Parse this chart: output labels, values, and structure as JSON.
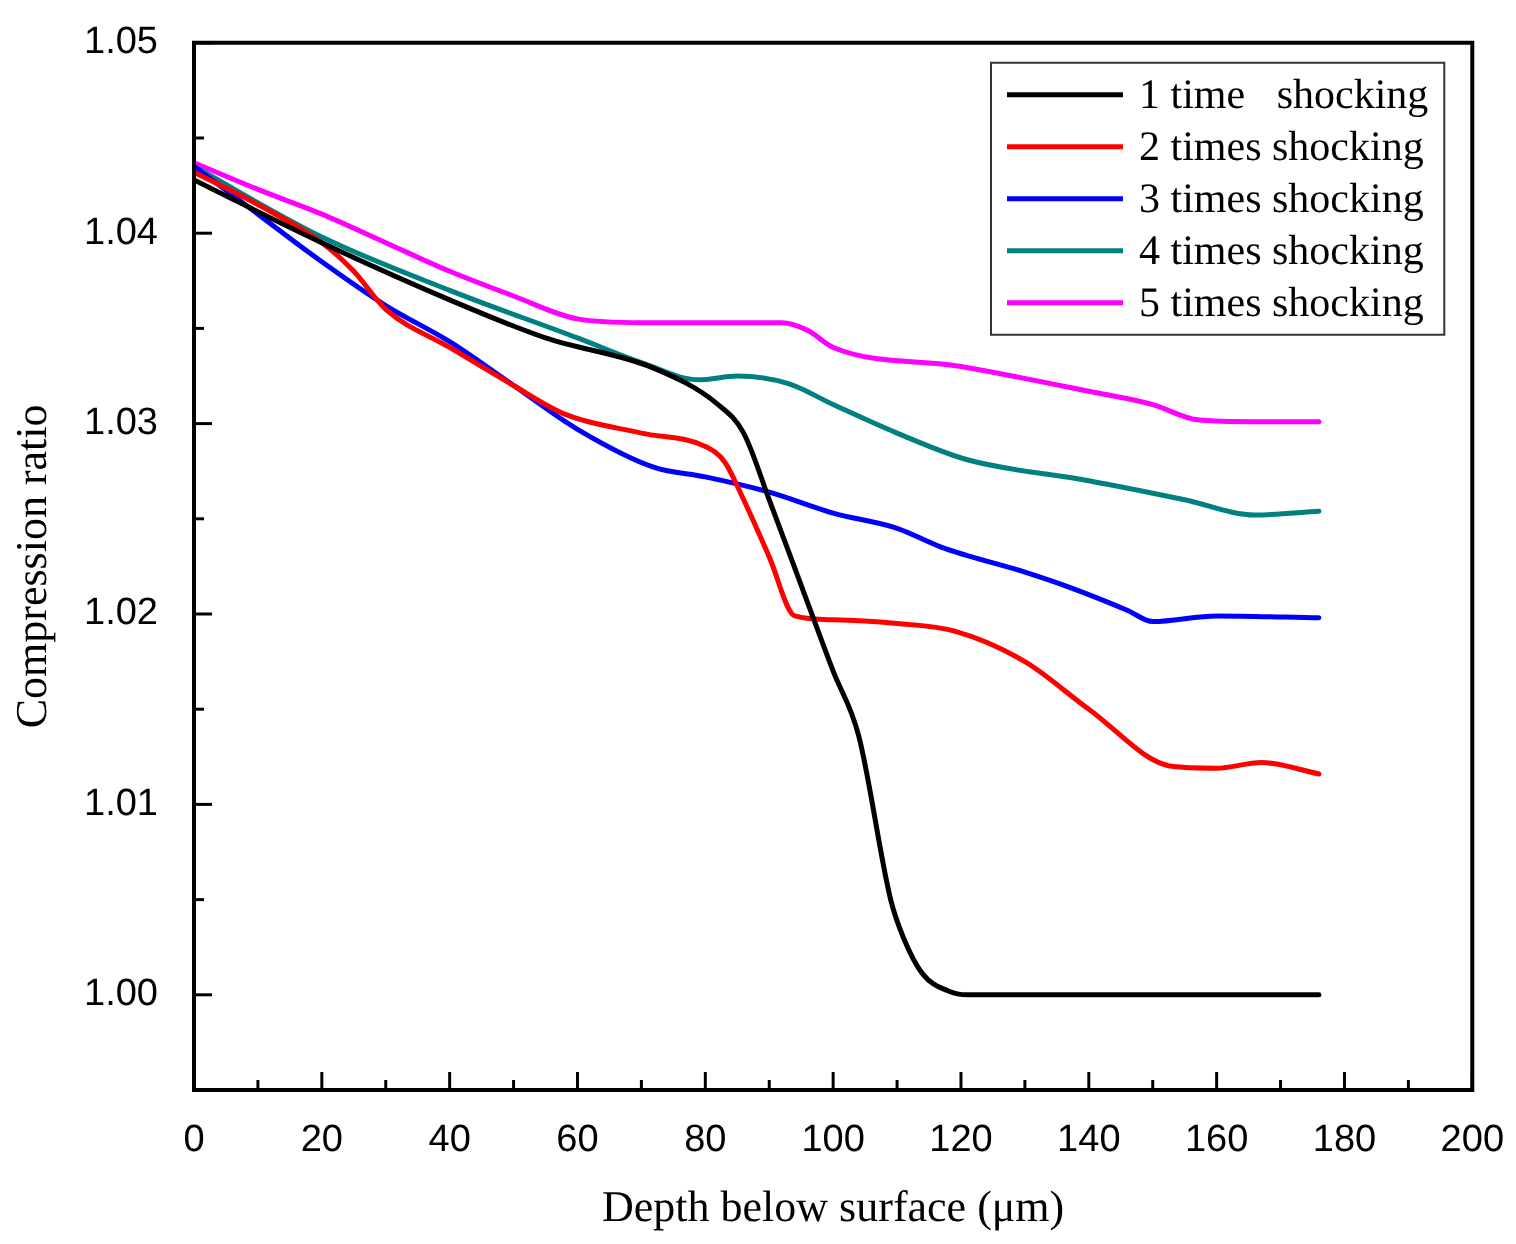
{
  "chart_data": {
    "type": "line",
    "xlabel": "Depth below surface (μm)",
    "ylabel": "Compression ratio",
    "xlim": [
      0,
      200
    ],
    "ylim": [
      0.995,
      1.05
    ],
    "xticks": [
      0,
      {
        "value": 10,
        "label": null
      },
      20,
      {
        "value": 30,
        "label": null
      },
      40,
      {
        "value": 50,
        "label": null
      },
      60,
      {
        "value": 70,
        "label": null
      },
      80,
      {
        "value": 90,
        "label": null
      },
      100,
      {
        "value": 110,
        "label": null
      },
      120,
      {
        "value": 130,
        "label": null
      },
      140,
      {
        "value": 150,
        "label": null
      },
      160,
      {
        "value": 170,
        "label": null
      },
      180,
      {
        "value": 190,
        "label": null
      },
      200
    ],
    "yticks": [
      {
        "value": 1.0,
        "label": "1.00"
      },
      {
        "value": 1.005,
        "label": null
      },
      {
        "value": 1.01,
        "label": "1.01"
      },
      {
        "value": 1.015,
        "label": null
      },
      {
        "value": 1.02,
        "label": "1.02"
      },
      {
        "value": 1.025,
        "label": null
      },
      {
        "value": 1.03,
        "label": "1.03"
      },
      {
        "value": 1.035,
        "label": null
      },
      {
        "value": 1.04,
        "label": "1.04"
      },
      {
        "value": 1.045,
        "label": null
      },
      {
        "value": 1.05,
        "label": "1.05"
      }
    ],
    "grid": false,
    "legend": "top right",
    "marker": "none",
    "line_style": "solid",
    "series": [
      {
        "name": "1 time   shocking",
        "color": "#000000",
        "x": [
          0,
          20,
          40,
          55,
          72,
          82,
          86,
          90,
          96,
          100,
          104,
          109,
          111,
          114,
          118,
          121,
          150,
          176
        ],
        "values": [
          1.0428,
          1.0395,
          1.0365,
          1.0345,
          1.0329,
          1.031,
          1.0295,
          1.026,
          1.0206,
          1.017,
          1.0136,
          1.005,
          1.003,
          1.0011,
          1.0002,
          1.0,
          1.0,
          1.0
        ]
      },
      {
        "name": "2 times shocking",
        "color": "#ff0000",
        "x": [
          0,
          10,
          20,
          25,
          30,
          40,
          50,
          58,
          70,
          80,
          83,
          86,
          90,
          94,
          100,
          110,
          119,
          130,
          140,
          153,
          160,
          167,
          176
        ],
        "values": [
          1.0432,
          1.0415,
          1.0395,
          1.038,
          1.036,
          1.034,
          1.032,
          1.0305,
          1.0295,
          1.0288,
          1.028,
          1.026,
          1.023,
          1.0199,
          1.0197,
          1.0195,
          1.0191,
          1.0175,
          1.015,
          1.012,
          1.0119,
          1.0122,
          1.0116
        ]
      },
      {
        "name": "3 times shocking",
        "color": "#0000ff",
        "x": [
          0,
          10,
          20,
          30,
          40,
          50,
          60,
          72,
          80,
          90,
          100,
          110,
          117,
          130,
          137,
          146,
          150,
          160,
          176
        ],
        "values": [
          1.0435,
          1.041,
          1.0385,
          1.0362,
          1.0343,
          1.032,
          1.0297,
          1.0277,
          1.0272,
          1.0264,
          1.0253,
          1.0245,
          1.0235,
          1.0222,
          1.0214,
          1.0202,
          1.0196,
          1.0199,
          1.0198
        ]
      },
      {
        "name": "4 times shocking",
        "color": "#008080",
        "x": [
          0,
          20,
          40,
          60,
          70,
          79,
          85,
          93,
          100,
          110,
          121,
          140,
          155,
          166,
          176
        ],
        "values": [
          1.0435,
          1.0398,
          1.037,
          1.0345,
          1.0332,
          1.0323,
          1.0325,
          1.0321,
          1.031,
          1.0295,
          1.0281,
          1.027,
          1.026,
          1.0252,
          1.0254
        ]
      },
      {
        "name": "5 times shocking",
        "color": "#ff00ff",
        "x": [
          0,
          10,
          20,
          30,
          40,
          50,
          60,
          70,
          80,
          92,
          96,
          100,
          120,
          140,
          150,
          157,
          166,
          176
        ],
        "values": [
          1.0437,
          1.0423,
          1.041,
          1.0395,
          1.038,
          1.0367,
          1.0355,
          1.0353,
          1.0353,
          1.0353,
          1.0349,
          1.034,
          1.033,
          1.0317,
          1.031,
          1.0302,
          1.0301,
          1.0301
        ]
      }
    ]
  }
}
